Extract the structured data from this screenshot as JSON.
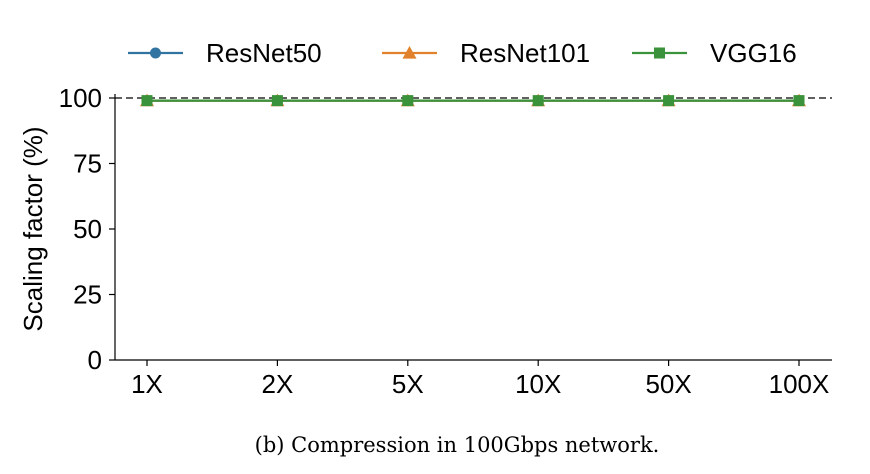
{
  "chart_data": {
    "type": "line",
    "categories": [
      "1X",
      "2X",
      "5X",
      "10X",
      "50X",
      "100X"
    ],
    "series": [
      {
        "name": "ResNet50",
        "values": [
          99,
          99,
          99,
          99,
          99,
          99
        ],
        "color": "#3274a1",
        "marker": "circle"
      },
      {
        "name": "ResNet101",
        "values": [
          99,
          99,
          99,
          99,
          99,
          99
        ],
        "color": "#e1812c",
        "marker": "triangle"
      },
      {
        "name": "VGG16",
        "values": [
          99,
          99,
          99,
          99,
          99,
          99
        ],
        "color": "#3a923a",
        "marker": "square"
      }
    ],
    "ylabel": "Scaling factor (%)",
    "xlabel": "",
    "ylim": [
      0,
      100
    ],
    "yticks": [
      0,
      25,
      50,
      75,
      100
    ],
    "reference_line": {
      "y": 100,
      "style": "dashed",
      "color": "#000000"
    },
    "legend": "top",
    "grid": false
  },
  "caption": "(b)  Compression in 100Gbps network."
}
